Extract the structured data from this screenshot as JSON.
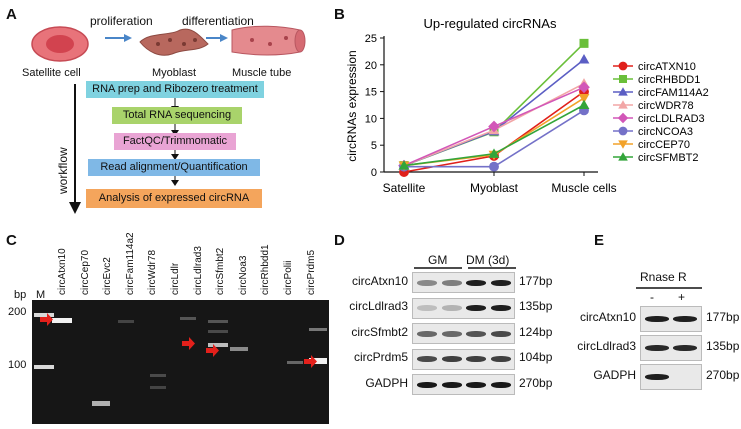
{
  "panel_a": {
    "label": "A",
    "arrow1_label": "proliferation",
    "arrow2_label": "differentiation",
    "cells": [
      "Satellite cell",
      "Myoblast",
      "Muscle tube"
    ],
    "workflow_label": "workflow",
    "steps": [
      {
        "text": "RNA prep and Ribozero treatment",
        "color": "#7fd2e0"
      },
      {
        "text": "Total RNA sequencing",
        "color": "#a9d36b"
      },
      {
        "text": "FactQC/Trimmomatic",
        "color": "#e9a4d4"
      },
      {
        "text": "Read alignment/Quantification",
        "color": "#7fb8e6"
      },
      {
        "text": "Analysis of expressed circRNA",
        "color": "#f4a55c"
      }
    ]
  },
  "panel_b": {
    "label": "B",
    "icons": {
      "legend_marker": "line-with-marker"
    }
  },
  "chart_data": {
    "type": "line",
    "title": "Up-regulated circRNAs",
    "xlabel": "",
    "ylabel": "circRNAs expression",
    "categories": [
      "Satellite",
      "Myoblast",
      "Muscle cells"
    ],
    "ylim": [
      0,
      25
    ],
    "yticks": [
      0,
      5,
      10,
      15,
      20,
      25
    ],
    "legend_position": "right",
    "grid": false,
    "series": [
      {
        "name": "circATXN10",
        "color": "#e0201b",
        "marker": "circle",
        "values": [
          0.0,
          3.0,
          15.0
        ]
      },
      {
        "name": "circRHBDD1",
        "color": "#6abf3a",
        "marker": "square",
        "values": [
          1.2,
          7.5,
          24.0
        ]
      },
      {
        "name": "circFAM114A2",
        "color": "#5b5ec4",
        "marker": "triangle",
        "values": [
          1.2,
          7.6,
          21.0
        ]
      },
      {
        "name": "circWDR78",
        "color": "#f2a6a6",
        "marker": "triangle",
        "values": [
          1.2,
          7.8,
          16.5
        ]
      },
      {
        "name": "circLDLRAD3",
        "color": "#d257b8",
        "marker": "diamond",
        "values": [
          1.2,
          8.5,
          15.8
        ]
      },
      {
        "name": "circNCOA3",
        "color": "#7471c8",
        "marker": "circle",
        "values": [
          1.0,
          1.0,
          11.5
        ]
      },
      {
        "name": "circCEP70",
        "color": "#f2a22a",
        "marker": "triangle-down",
        "values": [
          1.2,
          3.2,
          13.8
        ]
      },
      {
        "name": "circSFMBT2",
        "color": "#33a53a",
        "marker": "triangle",
        "values": [
          1.2,
          3.4,
          12.5
        ]
      }
    ]
  },
  "panel_c": {
    "label": "C",
    "bp_label": "bp",
    "marker_lane": "M",
    "size_labels": [
      "200",
      "100"
    ],
    "lanes": [
      "circAtxn10",
      "circCep70",
      "circEvc2",
      "circFam114a2",
      "circWdr78",
      "circLdlr",
      "circLdlrad3",
      "circSfmbt2",
      "circNoa3",
      "circRhbdd1",
      "circPolii",
      "circPrdm5"
    ]
  },
  "panel_d": {
    "label": "D",
    "conditions": [
      "GM",
      "DM (3d)"
    ],
    "rows": [
      {
        "name": "circAtxn10",
        "size": "177bp"
      },
      {
        "name": "circLdlrad3",
        "size": "135bp"
      },
      {
        "name": "circSfmbt2",
        "size": "124bp"
      },
      {
        "name": "circPrdm5",
        "size": "104bp"
      },
      {
        "name": "GADPH",
        "size": "270bp"
      }
    ]
  },
  "panel_e": {
    "label": "E",
    "treatment": "Rnase R",
    "columns": [
      "-",
      "+"
    ],
    "rows": [
      {
        "name": "circAtxn10",
        "size": "177bp"
      },
      {
        "name": "circLdlrad3",
        "size": "135bp"
      },
      {
        "name": "GADPH",
        "size": "270bp"
      }
    ]
  }
}
